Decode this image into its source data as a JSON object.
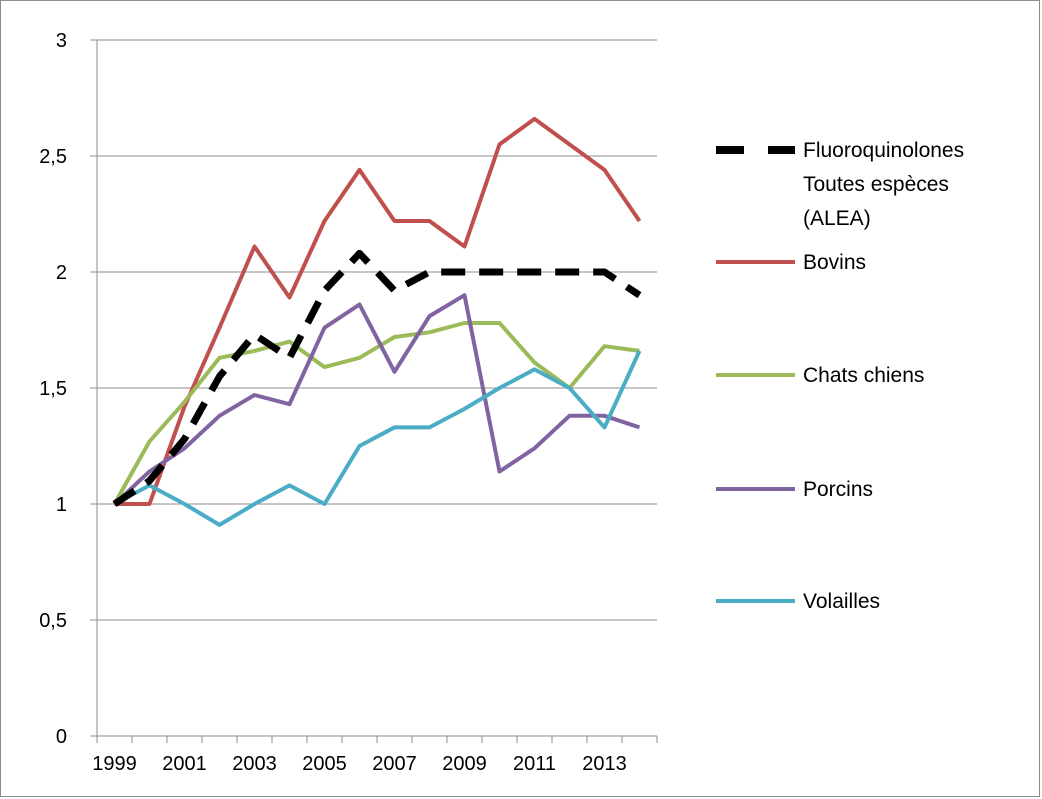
{
  "chart_data": {
    "type": "line",
    "title": "",
    "xlabel": "",
    "ylabel": "",
    "ylim": [
      0,
      3
    ],
    "yticks": [
      "0",
      "0,5",
      "1",
      "1,5",
      "2",
      "2,5",
      "3"
    ],
    "ytick_values": [
      0,
      0.5,
      1,
      1.5,
      2,
      2.5,
      3
    ],
    "x": [
      1999,
      2000,
      2001,
      2002,
      2003,
      2004,
      2005,
      2006,
      2007,
      2008,
      2009,
      2010,
      2011,
      2012,
      2013,
      2014
    ],
    "xtick_labels": [
      "1999",
      "2001",
      "2003",
      "2005",
      "2007",
      "2009",
      "2011",
      "2013"
    ],
    "grid": true,
    "legend_position": "right",
    "series": [
      {
        "name": "Fluoroquinolones Toutes espèces (ALEA)",
        "legend_lines": [
          "Fluoroquinolones",
          "Toutes espèces",
          "(ALEA)"
        ],
        "color": "#000000",
        "dashed": true,
        "values": [
          1.0,
          1.1,
          1.28,
          1.55,
          1.73,
          1.63,
          1.92,
          2.08,
          1.92,
          2.0,
          2.0,
          2.0,
          2.0,
          2.0,
          2.0,
          1.9
        ]
      },
      {
        "name": "Bovins",
        "legend_lines": [
          "Bovins"
        ],
        "color": "#c0504d",
        "dashed": false,
        "values": [
          1.0,
          1.0,
          1.42,
          1.76,
          2.11,
          1.89,
          2.22,
          2.44,
          2.22,
          2.22,
          2.11,
          2.55,
          2.66,
          2.55,
          2.44,
          2.22
        ]
      },
      {
        "name": "Chats chiens",
        "legend_lines": [
          "Chats chiens"
        ],
        "color": "#9bbb59",
        "dashed": false,
        "values": [
          1.0,
          1.27,
          1.44,
          1.63,
          1.66,
          1.7,
          1.59,
          1.63,
          1.72,
          1.74,
          1.78,
          1.78,
          1.61,
          1.5,
          1.68,
          1.66
        ]
      },
      {
        "name": "Porcins",
        "legend_lines": [
          "Porcins"
        ],
        "color": "#8064a2",
        "dashed": false,
        "values": [
          1.0,
          1.14,
          1.24,
          1.38,
          1.47,
          1.43,
          1.76,
          1.86,
          1.57,
          1.81,
          1.9,
          1.14,
          1.24,
          1.38,
          1.38,
          1.33
        ]
      },
      {
        "name": "Volailles",
        "legend_lines": [
          "Volailles"
        ],
        "color": "#4bacc6",
        "dashed": false,
        "values": [
          1.0,
          1.08,
          1.0,
          0.91,
          1.0,
          1.08,
          1.0,
          1.25,
          1.33,
          1.33,
          1.41,
          1.5,
          1.58,
          1.5,
          1.33,
          1.66
        ]
      }
    ]
  }
}
